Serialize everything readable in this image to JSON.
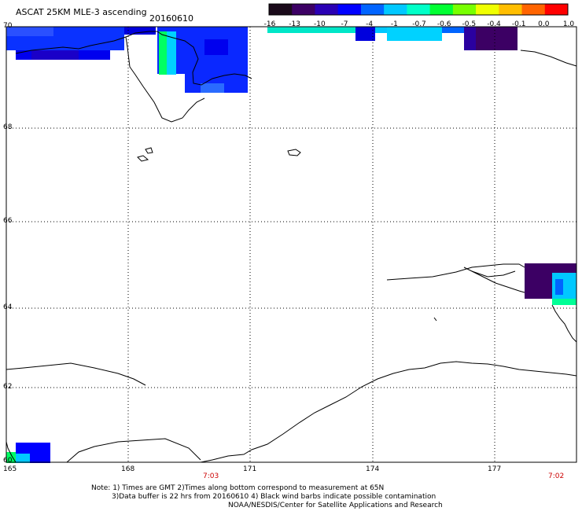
{
  "header": {
    "title": "ASCAT 25KM MLE-3 ascending",
    "date": "20160610"
  },
  "colorbar": {
    "labels": [
      "-16",
      "-13",
      "-10",
      "-7",
      "-4",
      "-1",
      "-0.7",
      "-0.6",
      "-0.5",
      "-0.4",
      "-0.1",
      "0.0",
      "1.0"
    ],
    "colors": [
      "#1a0a1a",
      "#3c0064",
      "#2a00b4",
      "#0000ff",
      "#0064ff",
      "#00c8ff",
      "#00ffc8",
      "#00ff32",
      "#78ff00",
      "#f0ff00",
      "#ffbe00",
      "#ff6400",
      "#ff0000"
    ]
  },
  "map": {
    "lon_labels": [
      "165",
      "168",
      "171",
      "174",
      "177"
    ],
    "lat_labels": [
      "70",
      "68",
      "66",
      "64",
      "62",
      "60"
    ],
    "time_labels": [
      "7:03",
      "7:02"
    ]
  },
  "footer": {
    "note1": "Note: 1) Times are GMT 2)Times along bottom correspond to measurement at 65N",
    "note2": "3)Data buffer is 22 hrs from 20160610 4) Black wind barbs indicate possible contamination",
    "credit": "NOAA/NESDIS/Center for Satellite Applications and Research"
  }
}
